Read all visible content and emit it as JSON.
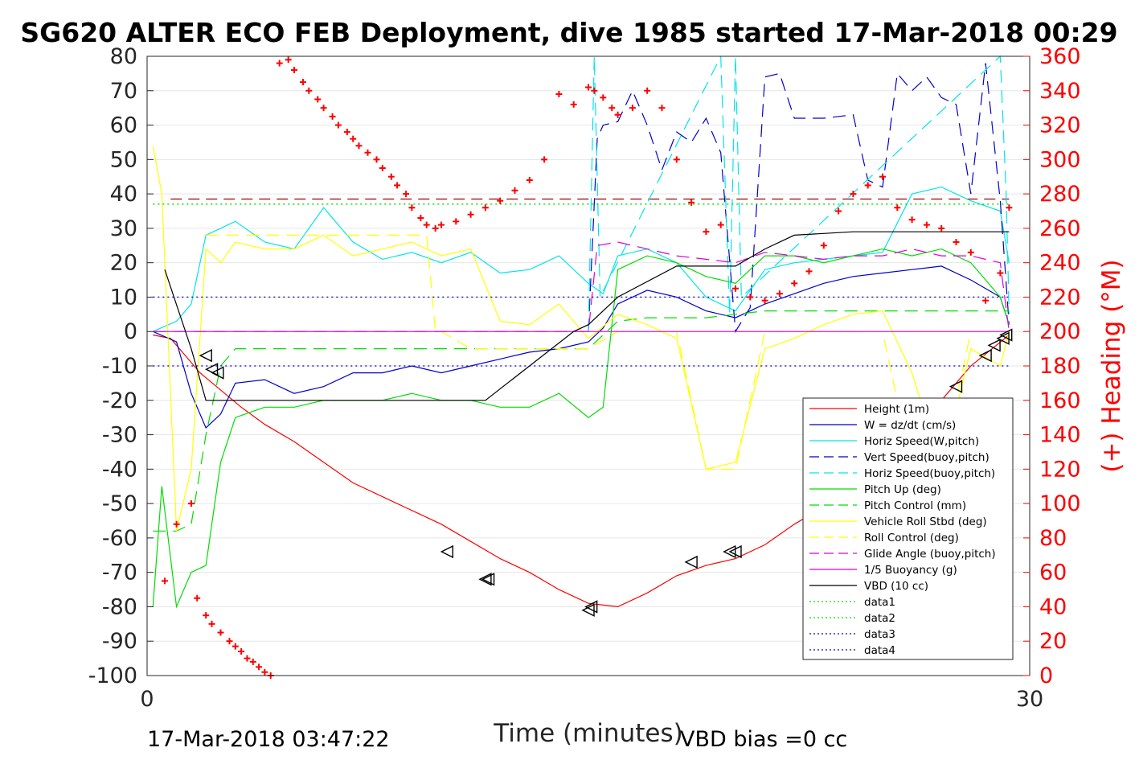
{
  "chart_data": {
    "type": "line",
    "title": "SG620 ALTER ECO FEB Deployment, dive 1985 started 17-Mar-2018 00:29",
    "xlabel": "Time (minutes)",
    "ylabel_right": "(+) Heading (°M)",
    "xlim": [
      0,
      30
    ],
    "ylim_left": [
      -100,
      80
    ],
    "ylim_right": [
      0,
      360
    ],
    "x_ticks": [
      "0",
      "30"
    ],
    "y_ticks_left": [
      "80",
      "70",
      "60",
      "50",
      "40",
      "30",
      "20",
      "10",
      "0",
      "-10",
      "-20",
      "-30",
      "-40",
      "-50",
      "-60",
      "-70",
      "-80",
      "-90",
      "-100"
    ],
    "y_ticks_right": [
      "360",
      "340",
      "320",
      "300",
      "280",
      "260",
      "240",
      "220",
      "200",
      "180",
      "160",
      "140",
      "120",
      "100",
      "80",
      "60",
      "40",
      "20",
      "0"
    ],
    "grid": true,
    "legend_position": "lower-right",
    "footer_left": "17-Mar-2018 03:47:22",
    "footer_right": "VBD bias =0 cc",
    "colors": {
      "red": "#ff0000",
      "blue": "#0000cc",
      "cyan": "#00e5e5",
      "green": "#00dd00",
      "yellow": "#ffff00",
      "magenta": "#dd00dd",
      "black": "#000000",
      "darkred": "#990000"
    },
    "series": [
      {
        "name": "Height (1m)",
        "color": "#ff0000",
        "dash": "solid",
        "x": [
          0.2,
          0.8,
          1.2,
          1.8,
          2.5,
          3.2,
          4,
          5,
          6,
          7,
          8,
          9,
          10,
          11,
          12,
          13,
          14,
          15,
          16,
          17,
          18,
          19,
          20,
          21,
          22,
          23,
          24,
          25,
          26,
          27,
          28,
          29.3
        ],
        "y": [
          -1,
          -2,
          -6,
          -12,
          -17,
          -22,
          -27,
          -32,
          -38,
          -44,
          -48,
          -52,
          -56,
          -61,
          -66,
          -70,
          -75,
          -79,
          -80,
          -76,
          -71,
          -68,
          -66,
          -62,
          -56,
          -51,
          -45,
          -38,
          -30,
          -20,
          -10,
          -1
        ]
      },
      {
        "name": "W = dz/dt (cm/s)",
        "color": "#0000cc",
        "dash": "solid",
        "x": [
          0.2,
          1,
          1.5,
          2,
          2.5,
          3,
          4,
          5,
          6,
          7,
          8,
          9,
          10,
          11,
          12,
          13,
          14,
          15,
          15.5,
          16,
          17,
          18,
          19,
          20,
          21,
          22,
          23,
          24,
          25,
          26,
          27,
          28,
          29,
          29.3
        ],
        "y": [
          0,
          -3,
          -18,
          -28,
          -24,
          -15,
          -14,
          -18,
          -16,
          -12,
          -12,
          -10,
          -12,
          -10,
          -8,
          -6,
          -5,
          -3,
          1,
          8,
          12,
          10,
          6,
          4,
          8,
          11,
          14,
          16,
          17,
          18,
          19,
          15,
          10,
          2
        ]
      },
      {
        "name": "Horiz Speed(W,pitch)",
        "color": "#00e5e5",
        "dash": "solid",
        "x": [
          0.2,
          1,
          1.5,
          2,
          3,
          4,
          5,
          6,
          7,
          8,
          9,
          10,
          11,
          12,
          13,
          14,
          15,
          15.5,
          16,
          17,
          18,
          19,
          20,
          21,
          22,
          23,
          24,
          25,
          26,
          27,
          28,
          29,
          29.3
        ],
        "y": [
          0,
          3,
          8,
          28,
          32,
          26,
          24,
          36,
          26,
          21,
          23,
          20,
          23,
          17,
          18,
          22,
          14,
          11,
          22,
          24,
          20,
          10,
          6,
          18,
          20,
          21,
          22,
          23,
          40,
          42,
          38,
          35,
          20
        ]
      },
      {
        "name": "Vert Speed(buoy,pitch)",
        "color": "#0000cc",
        "dash": "dashed",
        "x": [
          15,
          15.3,
          15.5,
          16,
          16.5,
          17,
          17.5,
          18,
          18.5,
          19,
          19.5,
          20,
          20.5,
          21,
          21.5,
          22,
          23,
          24,
          24.5,
          25,
          25.5,
          26,
          26.5,
          27,
          27.5,
          28,
          28.5,
          29,
          29.3
        ],
        "y": [
          0,
          56,
          60,
          61,
          70,
          60,
          47,
          58,
          55,
          62,
          52,
          0,
          7,
          74,
          75,
          62,
          62,
          63,
          44,
          42,
          75,
          70,
          74,
          68,
          66,
          40,
          78,
          38,
          2
        ]
      },
      {
        "name": "Horiz Speed(buoy,pitch)",
        "color": "#00e5e5",
        "dash": "dashed",
        "x": [
          15,
          15.2,
          15.4,
          19.5,
          19.8,
          20,
          20.2,
          29,
          29.2,
          29.3
        ],
        "y": [
          0,
          80,
          10,
          80,
          5,
          80,
          10,
          80,
          40,
          5
        ]
      },
      {
        "name": "Pitch Up (deg)",
        "color": "#00dd00",
        "dash": "solid",
        "x": [
          0.2,
          0.5,
          1,
          1.5,
          2,
          2.5,
          3,
          4,
          5,
          6,
          7,
          8,
          9,
          10,
          11,
          12,
          13,
          14,
          15,
          15.5,
          16,
          17,
          18,
          19,
          20,
          21,
          22,
          23,
          24,
          25,
          26,
          27,
          28,
          29,
          29.3
        ],
        "y": [
          -80,
          -45,
          -80,
          -70,
          -68,
          -38,
          -25,
          -22,
          -22,
          -20,
          -20,
          -20,
          -18,
          -20,
          -20,
          -22,
          -22,
          -18,
          -25,
          -22,
          18,
          22,
          20,
          16,
          14,
          22,
          22,
          20,
          22,
          24,
          22,
          24,
          20,
          10,
          2
        ]
      },
      {
        "name": "Pitch Control (mm)",
        "color": "#00dd00",
        "dash": "dashed",
        "x": [
          0.2,
          1,
          1.5,
          2,
          2.5,
          3,
          4,
          5,
          6,
          7,
          8,
          9,
          10,
          11,
          12,
          13,
          14,
          15,
          16,
          17,
          18,
          19,
          20,
          21,
          22,
          23,
          24,
          25,
          26,
          27,
          28,
          29,
          29.3
        ],
        "y": [
          -58,
          -58,
          -56,
          -30,
          -10,
          -5,
          -5,
          -5,
          -5,
          -5,
          -5,
          -5,
          -5,
          -5,
          -5,
          -5,
          -5,
          -5,
          3,
          4,
          4,
          4,
          5,
          6,
          6,
          6,
          6,
          6,
          6,
          6,
          6,
          6,
          6
        ]
      },
      {
        "name": "Vehicle Roll Stbd (deg)",
        "color": "#ffff00",
        "dash": "solid",
        "x": [
          0.2,
          0.5,
          1,
          1.5,
          2,
          2.5,
          3,
          4,
          5,
          6,
          7,
          8,
          9,
          10,
          11,
          12,
          13,
          14,
          15,
          16,
          17,
          18,
          19,
          20,
          21,
          22,
          23,
          24,
          25,
          26,
          27,
          28,
          29,
          29.3
        ],
        "y": [
          54,
          40,
          -58,
          -40,
          24,
          20,
          26,
          24,
          24,
          28,
          22,
          24,
          26,
          22,
          24,
          3,
          2,
          8,
          -2,
          5,
          2,
          -2,
          -40,
          -38,
          -5,
          -2,
          2,
          5,
          6,
          -12,
          -40,
          -5,
          -10,
          0
        ]
      },
      {
        "name": "Roll Control (deg)",
        "color": "#ffff00",
        "dash": "dashed",
        "x": [
          2,
          3,
          4,
          5,
          6,
          7,
          8,
          9,
          9.5,
          9.8,
          10,
          11,
          12,
          13,
          14,
          15,
          16,
          17,
          18,
          19,
          20,
          21,
          22,
          23,
          24,
          25,
          26,
          27,
          28,
          29
        ],
        "y": [
          28,
          28,
          28,
          28,
          28,
          28,
          28,
          28,
          28,
          0,
          0,
          -5,
          -5,
          -5,
          -5,
          -5,
          0,
          0,
          0,
          -40,
          -40,
          0,
          0,
          0,
          0,
          0,
          -40,
          -40,
          0,
          0
        ]
      },
      {
        "name": "Glide Angle (buoy,pitch)",
        "color": "#dd00dd",
        "dash": "dashed",
        "x": [
          0.2,
          15,
          15.3,
          16,
          17,
          18,
          19,
          20,
          21,
          22,
          23,
          24,
          25,
          26,
          27,
          28,
          29,
          29.3
        ],
        "y": [
          0,
          0,
          25,
          26,
          24,
          22,
          21,
          20,
          23,
          22,
          21,
          22,
          22,
          24,
          22,
          22,
          20,
          0
        ]
      },
      {
        "name": "1/5 Buoyancy (g)",
        "color": "#dd00dd",
        "dash": "solid",
        "x": [
          0.2,
          29.3
        ],
        "y": [
          0,
          0
        ]
      },
      {
        "name": "VBD (10 cc)",
        "color": "#000000",
        "dash": "solid",
        "x": [
          0.6,
          1.5,
          2,
          11.5,
          14.5,
          15,
          16,
          18,
          20,
          21,
          22,
          24,
          26,
          28,
          29.3
        ],
        "y": [
          18,
          -5,
          -20,
          -20,
          0,
          2,
          10,
          19,
          19,
          24,
          28,
          29,
          29,
          29,
          29
        ]
      },
      {
        "name": "data1",
        "color": "#00dd00",
        "dash": "dotted",
        "x": [
          0.2,
          29.3
        ],
        "y": [
          37,
          37
        ]
      },
      {
        "name": "data2",
        "color": "#00dd00",
        "dash": "dotted",
        "x": [
          0.2,
          29.3
        ],
        "y": [
          37,
          37
        ]
      },
      {
        "name": "data3",
        "color": "#0000cc",
        "dash": "dotted",
        "x": [
          0.2,
          29.3
        ],
        "y": [
          10,
          10
        ]
      },
      {
        "name": "data4",
        "color": "#0000cc",
        "dash": "dotted",
        "x": [
          0.2,
          29.3
        ],
        "y": [
          -10,
          -10
        ]
      }
    ],
    "heading_points": {
      "axis": "right",
      "x": [
        0.6,
        1,
        1.5,
        1.7,
        2,
        2.2,
        2.5,
        2.8,
        3,
        3.2,
        3.4,
        3.6,
        3.8,
        4,
        4.2,
        4.5,
        4.8,
        5,
        5.3,
        5.5,
        5.8,
        6,
        6.3,
        6.5,
        6.8,
        7,
        7.2,
        7.5,
        7.8,
        8,
        8.3,
        8.5,
        8.8,
        9,
        9.3,
        9.5,
        9.8,
        10,
        10.5,
        11,
        11.5,
        12,
        12.5,
        13,
        13.5,
        14,
        14.5,
        15,
        15.2,
        15.5,
        15.8,
        16,
        16.5,
        17,
        17.5,
        18,
        18.5,
        19,
        19.5,
        20,
        20.5,
        21,
        21.5,
        22,
        22.5,
        23,
        23.5,
        24,
        24.5,
        25,
        25.5,
        26,
        26.5,
        27,
        27.5,
        28,
        28.5,
        29,
        29.3
      ],
      "y": [
        55,
        88,
        100,
        45,
        35,
        30,
        25,
        20,
        17,
        14,
        10,
        8,
        5,
        2,
        0,
        356,
        358,
        352,
        345,
        340,
        335,
        330,
        325,
        320,
        316,
        312,
        308,
        304,
        300,
        295,
        290,
        285,
        280,
        272,
        266,
        262,
        260,
        262,
        264,
        268,
        272,
        276,
        282,
        288,
        300,
        338,
        332,
        342,
        340,
        336,
        330,
        326,
        330,
        340,
        330,
        300,
        275,
        258,
        262,
        225,
        220,
        218,
        222,
        228,
        235,
        250,
        270,
        280,
        285,
        290,
        272,
        265,
        262,
        260,
        252,
        246,
        218,
        234,
        272
      ]
    },
    "triangle_markers": {
      "x": [
        2,
        2.2,
        2.4,
        10.2,
        11.5,
        11.6,
        15,
        15.1,
        18.5,
        19.8,
        20,
        24,
        24.3,
        25,
        26.3,
        26.5,
        27.5,
        28.5,
        28.8,
        29.1,
        29.2
      ],
      "y": [
        -7,
        -11,
        -12,
        -64,
        -72,
        -72,
        -81,
        -80,
        -67,
        -64,
        -64,
        -46,
        -44,
        -39,
        -26,
        -23,
        -16,
        -7,
        -4,
        -2,
        -1
      ]
    }
  }
}
